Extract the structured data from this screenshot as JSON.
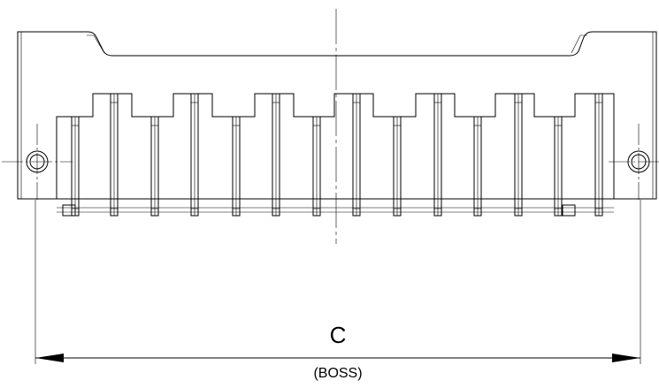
{
  "dimension": {
    "label": "C",
    "note": "(BOSS)"
  }
}
